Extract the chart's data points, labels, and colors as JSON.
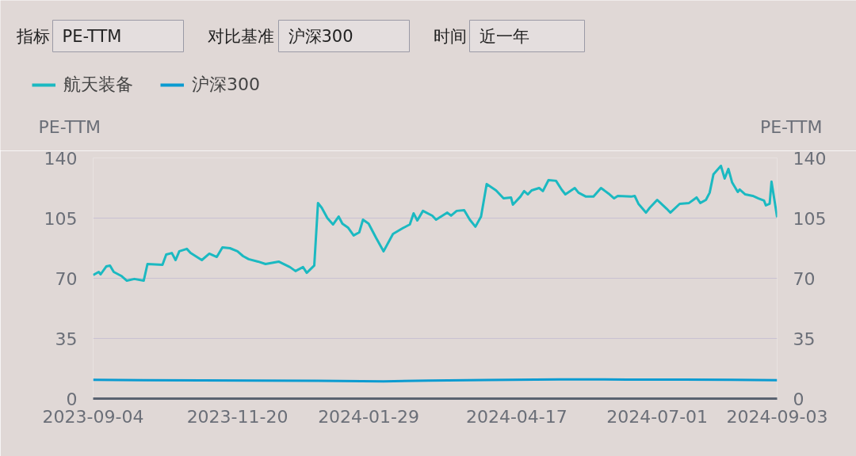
{
  "chart_data": {
    "type": "line",
    "annotations": [
      "指标",
      "PE-TTM",
      "对比基准",
      "沪深300",
      "时间",
      "近一年"
    ],
    "ylabel": "PE-TTM",
    "y2label": "PE-TTM",
    "xlim": [
      "2023-09-04",
      "2024-09-03"
    ],
    "xticks": [
      "2023-09-04",
      "2023-11-20",
      "2024-01-29",
      "2024-04-17",
      "2024-07-01",
      "2024-09-03"
    ],
    "ylim": [
      0,
      140
    ],
    "yticks": [
      0,
      35,
      70,
      105,
      140
    ],
    "y2lim": [
      0,
      140
    ],
    "y2ticks": [
      0,
      35,
      70,
      105,
      140
    ],
    "grid": "y",
    "legend": "top left",
    "marker": "none",
    "line_style": "solid",
    "series": [
      {
        "name": "航天装备",
        "color": "#1bb9c1",
        "x": [
          "2023-09-04",
          "2023-09-07",
          "2023-09-08",
          "2023-09-11",
          "2023-09-13",
          "2023-09-15",
          "2023-09-19",
          "2023-09-22",
          "2023-09-26",
          "2023-10-01",
          "2023-10-03",
          "2023-10-11",
          "2023-10-13",
          "2023-10-16",
          "2023-10-18",
          "2023-10-20",
          "2023-10-24",
          "2023-10-26",
          "2023-11-01",
          "2023-11-05",
          "2023-11-09",
          "2023-11-12",
          "2023-11-16",
          "2023-11-20",
          "2023-11-23",
          "2023-11-26",
          "2023-12-01",
          "2023-12-05",
          "2023-12-12",
          "2023-12-18",
          "2023-12-21",
          "2023-12-25",
          "2023-12-27",
          "2023-12-31",
          "2024-01-02",
          "2024-01-04",
          "2024-01-07",
          "2024-01-10",
          "2024-01-13",
          "2024-01-15",
          "2024-01-18",
          "2024-01-21",
          "2024-01-24",
          "2024-01-26",
          "2024-01-29",
          "2024-02-02",
          "2024-02-06",
          "2024-02-11",
          "2024-02-16",
          "2024-02-20",
          "2024-02-22",
          "2024-02-24",
          "2024-02-27",
          "2024-03-03",
          "2024-03-05",
          "2024-03-11",
          "2024-03-13",
          "2024-03-16",
          "2024-03-20",
          "2024-03-23",
          "2024-03-26",
          "2024-03-29",
          "2024-04-01",
          "2024-04-06",
          "2024-04-10",
          "2024-04-14",
          "2024-04-15",
          "2024-04-19",
          "2024-04-21",
          "2024-04-23",
          "2024-04-25",
          "2024-04-29",
          "2024-05-01",
          "2024-05-04",
          "2024-05-08",
          "2024-05-11",
          "2024-05-13",
          "2024-05-18",
          "2024-05-20",
          "2024-05-24",
          "2024-05-28",
          "2024-06-01",
          "2024-06-05",
          "2024-06-08",
          "2024-06-10",
          "2024-06-17",
          "2024-06-19",
          "2024-06-21",
          "2024-06-25",
          "2024-06-27",
          "2024-07-01",
          "2024-07-06",
          "2024-07-08",
          "2024-07-13",
          "2024-07-18",
          "2024-07-22",
          "2024-07-24",
          "2024-07-27",
          "2024-07-29",
          "2024-07-31",
          "2024-08-04",
          "2024-08-06",
          "2024-08-08",
          "2024-08-10",
          "2024-08-13",
          "2024-08-14",
          "2024-08-17",
          "2024-08-21",
          "2024-08-24",
          "2024-08-27",
          "2024-08-28",
          "2024-08-30",
          "2024-08-31",
          "2024-09-03"
        ],
        "values": [
          71.9,
          73.7,
          72.3,
          76.9,
          77.4,
          73.7,
          71.4,
          68.6,
          69.6,
          68.6,
          78.3,
          77.8,
          83.8,
          84.7,
          80.6,
          85.7,
          87.1,
          84.7,
          80.6,
          84.3,
          82.4,
          88.0,
          87.5,
          85.7,
          82.9,
          81.1,
          79.7,
          78.3,
          79.7,
          76.5,
          74.2,
          76.5,
          73.2,
          77.4,
          113.8,
          111.0,
          105.0,
          101.3,
          105.9,
          101.8,
          99.5,
          94.9,
          96.7,
          104.1,
          101.8,
          93.5,
          85.7,
          95.8,
          99.0,
          101.3,
          107.8,
          103.6,
          109.2,
          106.4,
          104.1,
          108.2,
          106.4,
          109.2,
          109.6,
          104.1,
          100.0,
          105.9,
          124.8,
          121.1,
          116.5,
          117.0,
          112.8,
          117.5,
          120.7,
          118.8,
          121.1,
          122.5,
          120.7,
          127.1,
          126.7,
          121.6,
          118.8,
          122.5,
          119.8,
          117.5,
          117.5,
          122.5,
          119.3,
          116.5,
          117.9,
          117.5,
          117.9,
          113.3,
          108.2,
          111.0,
          115.6,
          110.5,
          108.2,
          113.3,
          113.8,
          117.0,
          113.8,
          115.6,
          119.8,
          130.4,
          135.4,
          128.0,
          133.6,
          125.7,
          120.2,
          121.6,
          118.8,
          117.9,
          116.5,
          115.2,
          112.4,
          113.3,
          126.2,
          105.5
        ]
      },
      {
        "name": "沪深300",
        "color": "#0a9bd1",
        "x": [
          "2023-09-04",
          "2023-10-01",
          "2023-11-01",
          "2023-12-01",
          "2024-01-02",
          "2024-02-06",
          "2024-03-01",
          "2024-04-01",
          "2024-05-10",
          "2024-06-15",
          "2024-07-15",
          "2024-08-10",
          "2024-09-03"
        ],
        "values": [
          10.9,
          10.7,
          10.6,
          10.5,
          10.4,
          10.0,
          10.5,
          10.8,
          11.2,
          11.1,
          11.0,
          10.9,
          10.7
        ]
      }
    ]
  }
}
